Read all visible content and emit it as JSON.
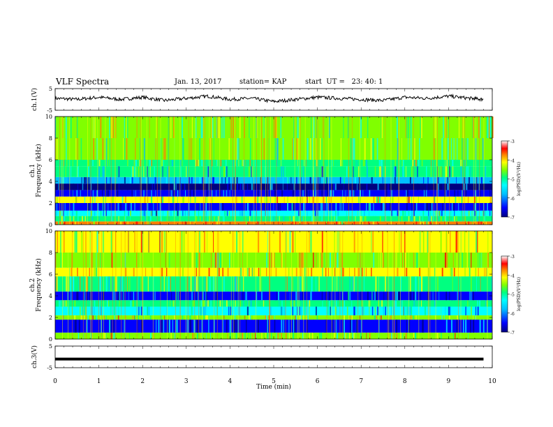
{
  "header": {
    "title": "VLF Spectra",
    "date": "Jan. 13, 2017",
    "station": "station= KAP",
    "start": "start  UT =   23: 40: 1"
  },
  "colors": {
    "colormap": [
      "#000080",
      "#0000ff",
      "#00bfff",
      "#00ffff",
      "#00ff80",
      "#80ff00",
      "#ffff00",
      "#ff8000",
      "#ff0000",
      "#ffffff"
    ],
    "trace": "#000000"
  },
  "chart_data": [
    {
      "type": "line",
      "id": "ch1-voltage",
      "ylabel": "ch.1(V)",
      "ylim": [
        -5,
        5
      ],
      "yticks": [
        "5",
        "-5"
      ],
      "xlim": [
        0,
        10
      ],
      "description_values": "noisy trace near 0 V",
      "x": [
        0,
        0.5,
        1,
        1.5,
        2,
        2.5,
        3,
        3.5,
        4,
        4.5,
        5,
        5.5,
        6,
        6.5,
        7,
        7.5,
        8,
        8.5,
        9,
        9.5,
        9.8
      ],
      "y": [
        0.5,
        0,
        1,
        0,
        1,
        -0.5,
        0.5,
        1.5,
        0,
        0.5,
        -1,
        0,
        1,
        0.5,
        0,
        -0.5,
        1,
        0.5,
        1.5,
        0.5,
        0
      ]
    },
    {
      "type": "heatmap",
      "id": "ch1-spectrogram",
      "ylabel": "ch.1  Frequency (kHz)",
      "ylim": [
        0,
        10
      ],
      "yticks": [
        "0",
        "2",
        "4",
        "6",
        "8",
        "10"
      ],
      "xlim": [
        0,
        10
      ],
      "colorbar": {
        "label": "log(PSD)(V²/Hz)",
        "range": [
          -7,
          -3
        ],
        "ticks": [
          "-3",
          "-4",
          "-5",
          "-6",
          "-7"
        ]
      },
      "bands_khz": [
        [
          0,
          0.3,
          -3.8
        ],
        [
          0.3,
          0.8,
          -5
        ],
        [
          0.8,
          1.3,
          -5.5
        ],
        [
          1.3,
          2.0,
          -6.2
        ],
        [
          2.0,
          2.6,
          -4.2
        ],
        [
          2.6,
          3.2,
          -6.4
        ],
        [
          3.2,
          3.8,
          -6.7
        ],
        [
          3.8,
          4.4,
          -6.0
        ],
        [
          4.4,
          5.4,
          -5.2
        ],
        [
          5.4,
          6.0,
          -4.8
        ],
        [
          6.0,
          8.0,
          -4.7
        ],
        [
          8.0,
          10.0,
          -4.6
        ]
      ]
    },
    {
      "type": "heatmap",
      "id": "ch2-spectrogram",
      "ylabel": "ch.2  Frequency (kHz)",
      "ylim": [
        0,
        10
      ],
      "yticks": [
        "0",
        "2",
        "4",
        "6",
        "8",
        "10"
      ],
      "xlim": [
        0,
        10
      ],
      "colorbar": {
        "label": "log(PSD)(V²/Hz)",
        "range": [
          -7,
          -3
        ],
        "ticks": [
          "-3",
          "-4",
          "-5",
          "-6",
          "-7"
        ]
      },
      "bands_khz": [
        [
          0,
          0.6,
          -4.5
        ],
        [
          0.6,
          1.8,
          -6.3
        ],
        [
          1.8,
          2.2,
          -4.4
        ],
        [
          2.2,
          3.0,
          -5.5
        ],
        [
          3.0,
          3.6,
          -5.0
        ],
        [
          3.6,
          4.4,
          -6.2
        ],
        [
          4.4,
          5.8,
          -4.8
        ],
        [
          5.8,
          6.6,
          -3.9
        ],
        [
          6.6,
          8.0,
          -4.4
        ],
        [
          8.0,
          10.0,
          -4.2
        ]
      ]
    },
    {
      "type": "line",
      "id": "ch3-voltage",
      "ylabel": "ch.3(V)",
      "ylim": [
        -5,
        5
      ],
      "yticks": [
        "5",
        "-5"
      ],
      "xlim": [
        0,
        10
      ],
      "x": [
        0,
        9.8
      ],
      "y": [
        -1,
        -1
      ]
    }
  ],
  "xaxis": {
    "label": "Time  (min)",
    "ticks": [
      "0",
      "1",
      "2",
      "3",
      "4",
      "5",
      "6",
      "7",
      "8",
      "9",
      "10"
    ]
  }
}
